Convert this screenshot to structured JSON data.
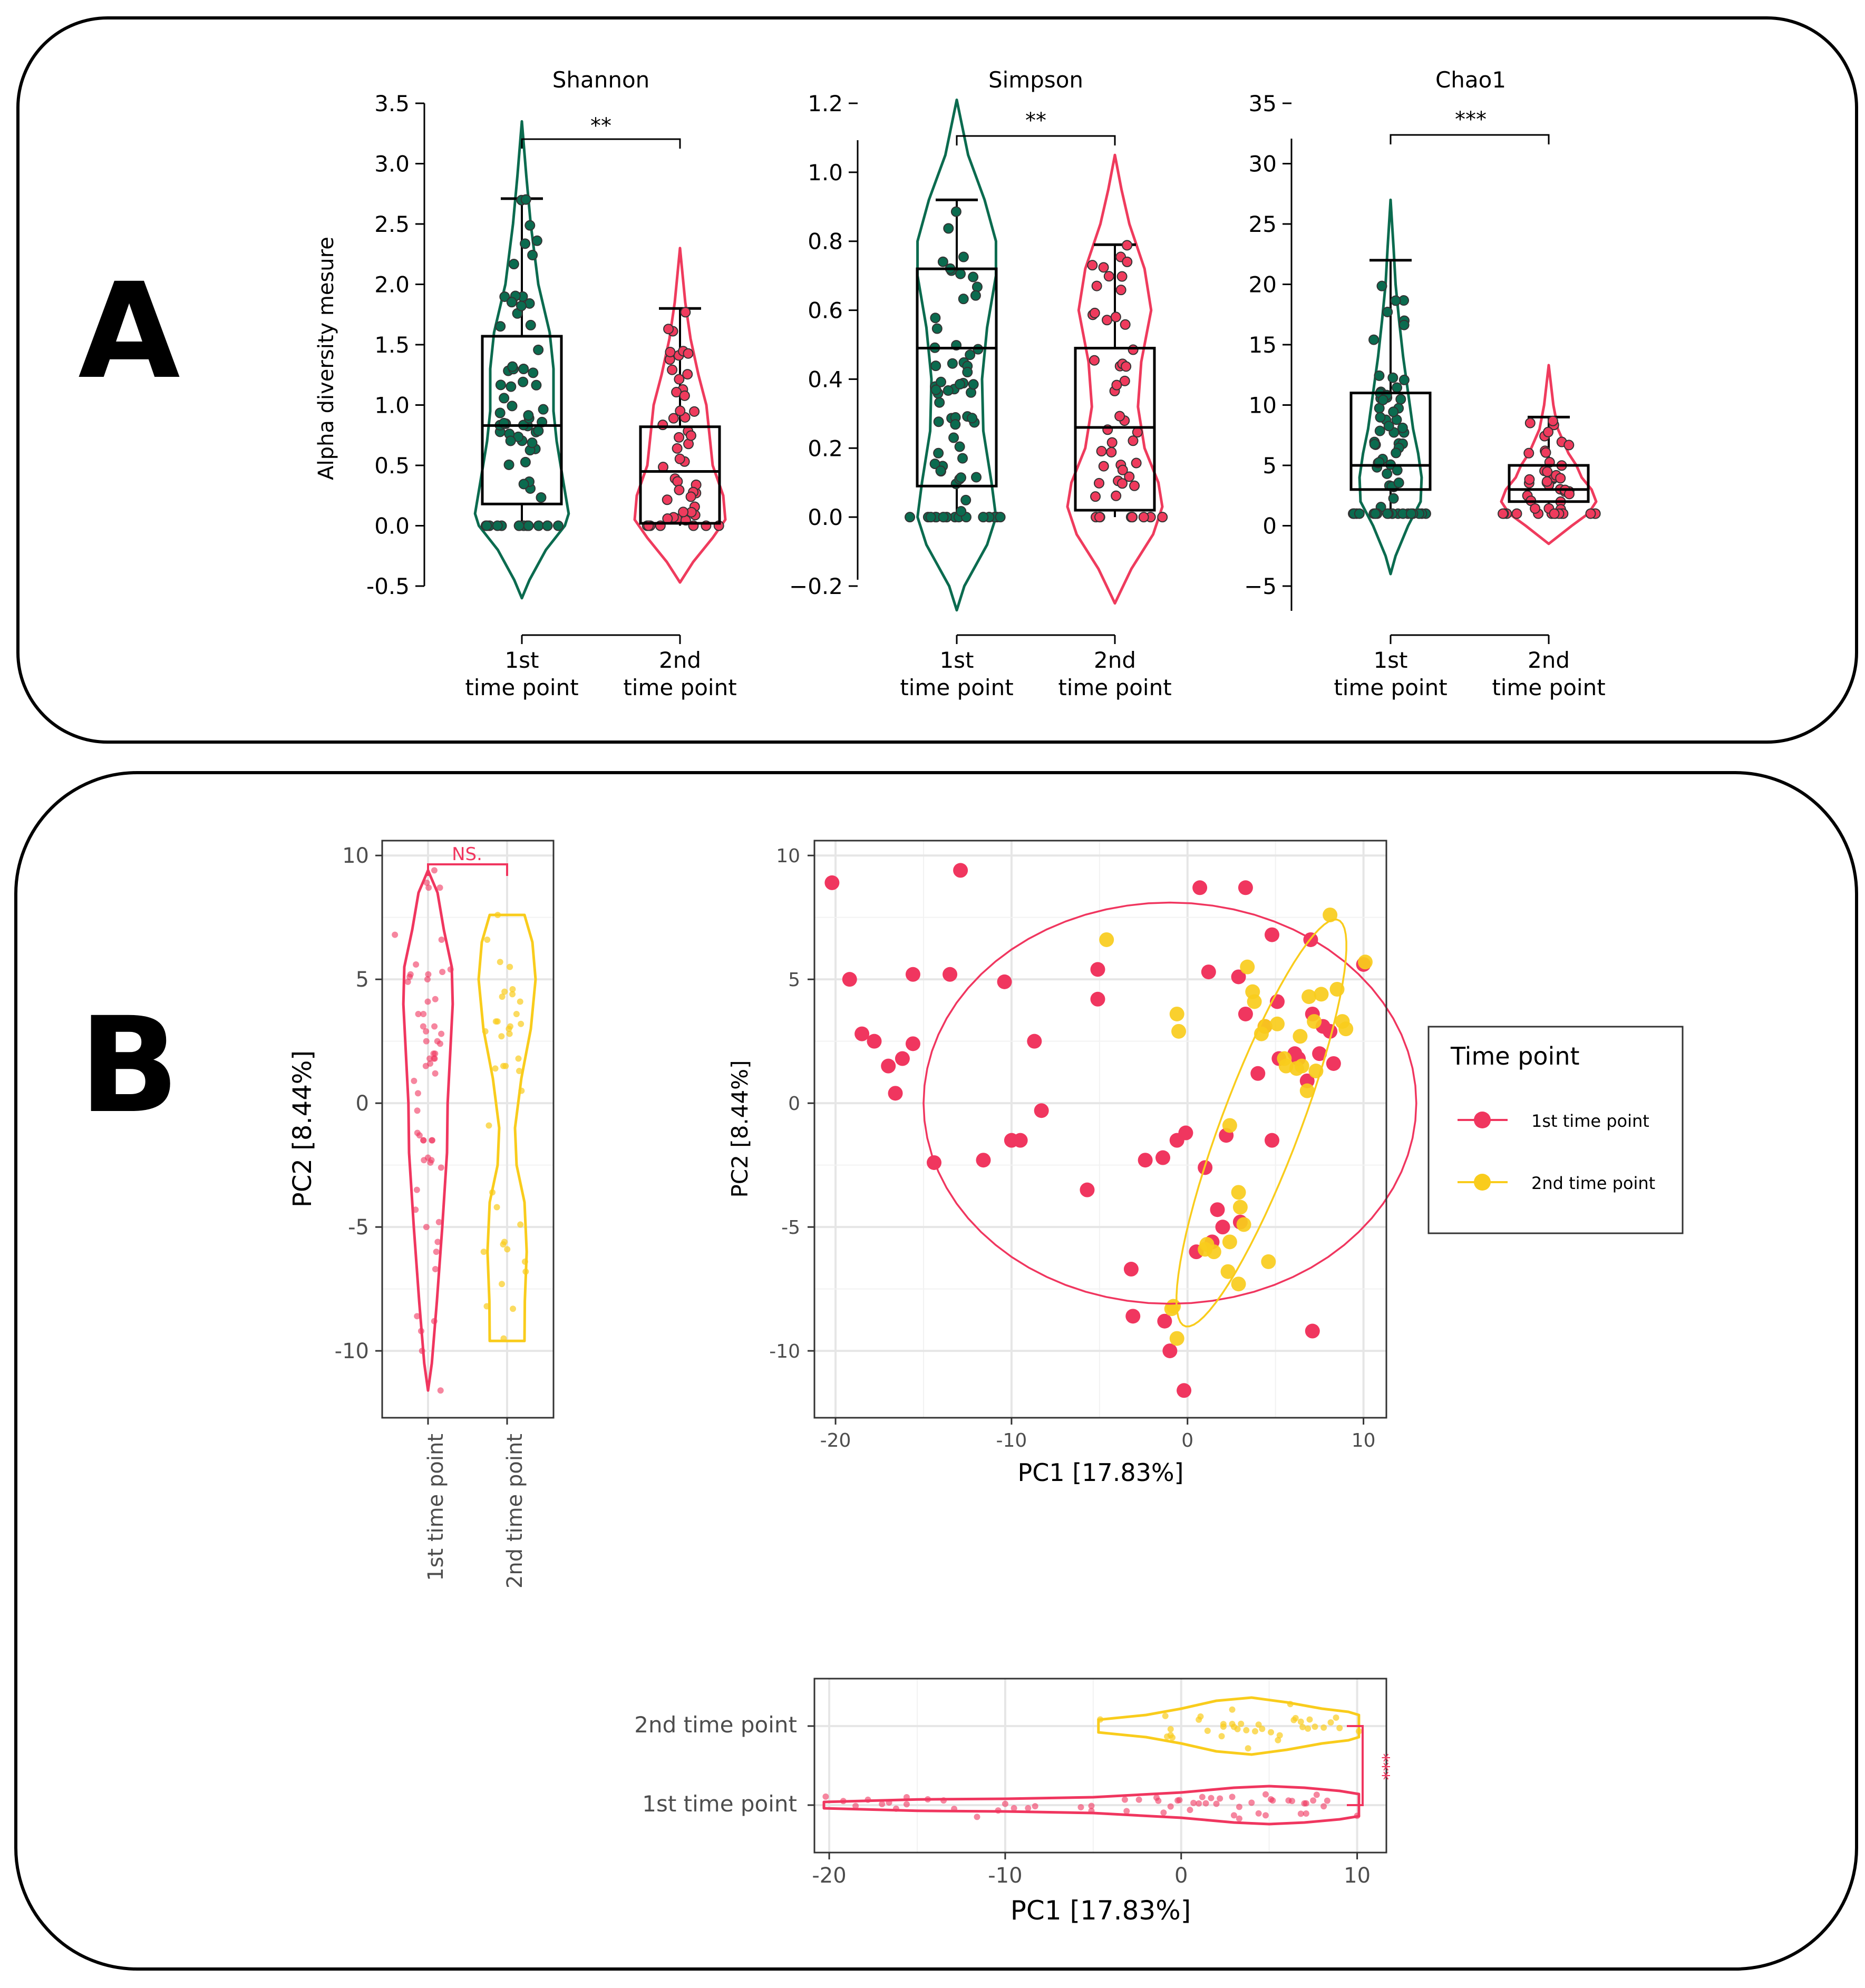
{
  "panel_a": {
    "letter": "A",
    "ylabel": "Alpha diversity mesure",
    "x_categories": [
      [
        "1st",
        "time point"
      ],
      [
        "2nd",
        "time point"
      ]
    ]
  },
  "panel_b": {
    "letter": "B",
    "legend": {
      "title": "Time point",
      "items": [
        "1st time point",
        "2nd time point"
      ]
    }
  },
  "colors": {
    "a_first": "#0b6b4f",
    "a_second": "#ef3b5d",
    "b_first": "#f0365f",
    "b_second": "#f9cc1c"
  },
  "chart_data": [
    {
      "id": "shannon",
      "type": "violin",
      "title": "Shannon",
      "ylabel": "Alpha diversity mesure",
      "ylim": [
        -0.5,
        3.5
      ],
      "yticks": [
        "-0.5",
        "0.0",
        "0.5",
        "1.0",
        "1.5",
        "2.0",
        "2.5",
        "3.0",
        "3.5"
      ],
      "categories": [
        "1st time point",
        "2nd time point"
      ],
      "significance": "**",
      "box": [
        {
          "q1": 0.18,
          "median": 0.83,
          "q3": 1.57,
          "whisker_low": 0.0,
          "whisker_high": 2.71
        },
        {
          "q1": 0.02,
          "median": 0.45,
          "q3": 0.82,
          "whisker_low": 0.0,
          "whisker_high": 1.8
        }
      ],
      "violin_range": [
        [
          -0.6,
          3.35
        ],
        [
          -0.47,
          2.3
        ]
      ]
    },
    {
      "id": "simpson",
      "type": "violin",
      "title": "Simpson",
      "ylim": [
        -0.2,
        1.2
      ],
      "yticks": [
        "−0.2",
        "0.0",
        "0.2",
        "0.4",
        "0.6",
        "0.8",
        "1.0",
        "1.2"
      ],
      "categories": [
        "1st time point",
        "2nd time point"
      ],
      "significance": "**",
      "box": [
        {
          "q1": 0.09,
          "median": 0.49,
          "q3": 0.72,
          "whisker_low": 0.0,
          "whisker_high": 0.92
        },
        {
          "q1": 0.02,
          "median": 0.26,
          "q3": 0.49,
          "whisker_low": 0.0,
          "whisker_high": 0.79
        }
      ],
      "violin_range": [
        [
          -0.27,
          1.21
        ],
        [
          -0.25,
          1.05
        ]
      ]
    },
    {
      "id": "chao1",
      "type": "violin",
      "title": "Chao1",
      "ylim": [
        -5,
        35
      ],
      "yticks": [
        "−5",
        "0",
        "5",
        "10",
        "15",
        "20",
        "25",
        "30",
        "35"
      ],
      "categories": [
        "1st time point",
        "2nd time point"
      ],
      "significance": "***",
      "box": [
        {
          "q1": 3,
          "median": 5,
          "q3": 11,
          "whisker_low": 1,
          "whisker_high": 22
        },
        {
          "q1": 2,
          "median": 3,
          "q3": 5,
          "whisker_low": 1,
          "whisker_high": 9
        }
      ],
      "violin_range": [
        [
          -4,
          27
        ],
        [
          -1.5,
          13.3
        ]
      ]
    },
    {
      "id": "pc2_violin",
      "type": "violin",
      "ylabel": "PC2 [8.44%]",
      "ylim": [
        -12.7,
        10.6
      ],
      "yticks": [
        "-10",
        "-5",
        "0",
        "5",
        "10"
      ],
      "categories": [
        "1st time point",
        "2nd time point"
      ],
      "significance": "NS.",
      "violin_range": [
        [
          -11.6,
          9.4
        ],
        [
          -9.6,
          7.6
        ]
      ]
    },
    {
      "id": "pca_scatter",
      "type": "scatter",
      "xlabel": "PC1 [17.83%]",
      "ylabel": "PC2 [8.44%]",
      "xlim": [
        -21.2,
        11.3
      ],
      "ylim": [
        -12.7,
        10.6
      ],
      "xticks": [
        "-20",
        "-10",
        "0",
        "10"
      ],
      "yticks": [
        "-10",
        "-5",
        "0",
        "5",
        "10"
      ],
      "series": [
        {
          "name": "1st time point",
          "points": [
            [
              -20.2,
              8.9
            ],
            [
              -19.2,
              5.0
            ],
            [
              -18.5,
              2.8
            ],
            [
              -17.8,
              2.5
            ],
            [
              -17.0,
              1.5
            ],
            [
              -16.6,
              0.4
            ],
            [
              -16.2,
              1.8
            ],
            [
              -15.6,
              5.2
            ],
            [
              -15.6,
              2.4
            ],
            [
              -14.4,
              -2.4
            ],
            [
              -13.5,
              5.2
            ],
            [
              -12.9,
              9.4
            ],
            [
              -11.6,
              -2.3
            ],
            [
              -10.4,
              4.9
            ],
            [
              -10.0,
              -1.5
            ],
            [
              -9.5,
              -1.5
            ],
            [
              -8.7,
              2.5
            ],
            [
              -8.3,
              -0.3
            ],
            [
              -5.7,
              -3.5
            ],
            [
              -5.1,
              5.4
            ],
            [
              -5.1,
              4.2
            ],
            [
              -3.2,
              -6.7
            ],
            [
              -3.1,
              -8.6
            ],
            [
              -2.4,
              -2.3
            ],
            [
              -1.4,
              -2.2
            ],
            [
              -1.3,
              -8.8
            ],
            [
              -1.0,
              -10.0
            ],
            [
              -0.6,
              -1.5
            ],
            [
              -0.2,
              -11.6
            ],
            [
              -0.1,
              -1.2
            ],
            [
              0.7,
              8.7
            ],
            [
              1.0,
              -2.6
            ],
            [
              1.2,
              5.3
            ],
            [
              2.2,
              -1.3
            ],
            [
              2.9,
              5.1
            ],
            [
              3.3,
              8.7
            ],
            [
              3.3,
              3.6
            ],
            [
              4.4,
              3.1
            ],
            [
              4.8,
              6.8
            ],
            [
              5.1,
              4.1
            ],
            [
              6.1,
              2.0
            ],
            [
              6.8,
              0.9
            ],
            [
              7.0,
              6.6
            ],
            [
              7.1,
              3.6
            ],
            [
              7.1,
              -9.2
            ],
            [
              7.7,
              3.1
            ],
            [
              8.1,
              2.9
            ],
            [
              8.3,
              1.6
            ],
            [
              10.0,
              5.6
            ],
            [
              1.4,
              -5.6
            ],
            [
              1.7,
              -4.3
            ],
            [
              3.0,
              -4.8
            ],
            [
              4.0,
              1.2
            ],
            [
              5.2,
              1.8
            ],
            [
              6.3,
              1.8
            ],
            [
              7.5,
              2.0
            ],
            [
              2.0,
              -5.0
            ],
            [
              0.5,
              -6.0
            ],
            [
              4.8,
              -1.5
            ]
          ]
        },
        {
          "name": "2nd time point",
          "points": [
            [
              -4.6,
              6.6
            ],
            [
              -0.8,
              -8.2
            ],
            [
              -0.6,
              -9.5
            ],
            [
              -0.6,
              3.6
            ],
            [
              -0.5,
              2.9
            ],
            [
              1.0,
              -5.9
            ],
            [
              1.5,
              -6.0
            ],
            [
              2.3,
              -6.8
            ],
            [
              2.4,
              -5.6
            ],
            [
              2.4,
              -0.9
            ],
            [
              2.9,
              -3.6
            ],
            [
              3.0,
              -4.2
            ],
            [
              3.2,
              -4.9
            ],
            [
              3.4,
              5.5
            ],
            [
              3.7,
              4.5
            ],
            [
              3.8,
              4.1
            ],
            [
              4.2,
              2.8
            ],
            [
              4.4,
              3.1
            ],
            [
              4.6,
              -6.4
            ],
            [
              5.1,
              3.2
            ],
            [
              5.6,
              1.5
            ],
            [
              6.2,
              1.4
            ],
            [
              6.5,
              1.5
            ],
            [
              6.9,
              4.3
            ],
            [
              7.2,
              3.3
            ],
            [
              7.6,
              4.4
            ],
            [
              8.1,
              7.6
            ],
            [
              8.5,
              4.6
            ],
            [
              8.8,
              3.3
            ],
            [
              9.0,
              3.0
            ],
            [
              10.1,
              5.7
            ],
            [
              6.4,
              2.7
            ],
            [
              7.3,
              1.3
            ],
            [
              2.9,
              -7.3
            ],
            [
              1.1,
              -5.7
            ],
            [
              5.5,
              1.8
            ],
            [
              6.8,
              0.5
            ],
            [
              -0.9,
              -8.3
            ]
          ]
        }
      ],
      "ellipses": [
        {
          "series": "1st time point",
          "center": [
            -1.0,
            0.0
          ]
        },
        {
          "series": "2nd time point",
          "center": [
            4.2,
            -0.8
          ]
        }
      ]
    },
    {
      "id": "pc1_violin",
      "type": "violin",
      "orientation": "horizontal",
      "xlabel": "PC1 [17.83%]",
      "xlim": [
        -21.2,
        11.3
      ],
      "xticks": [
        "-20",
        "-10",
        "0",
        "10"
      ],
      "categories": [
        "2nd time point",
        "1st time point"
      ],
      "significance": "***",
      "violin_range": [
        [
          -4.7,
          10.1
        ],
        [
          -20.3,
          10.1
        ]
      ]
    }
  ]
}
